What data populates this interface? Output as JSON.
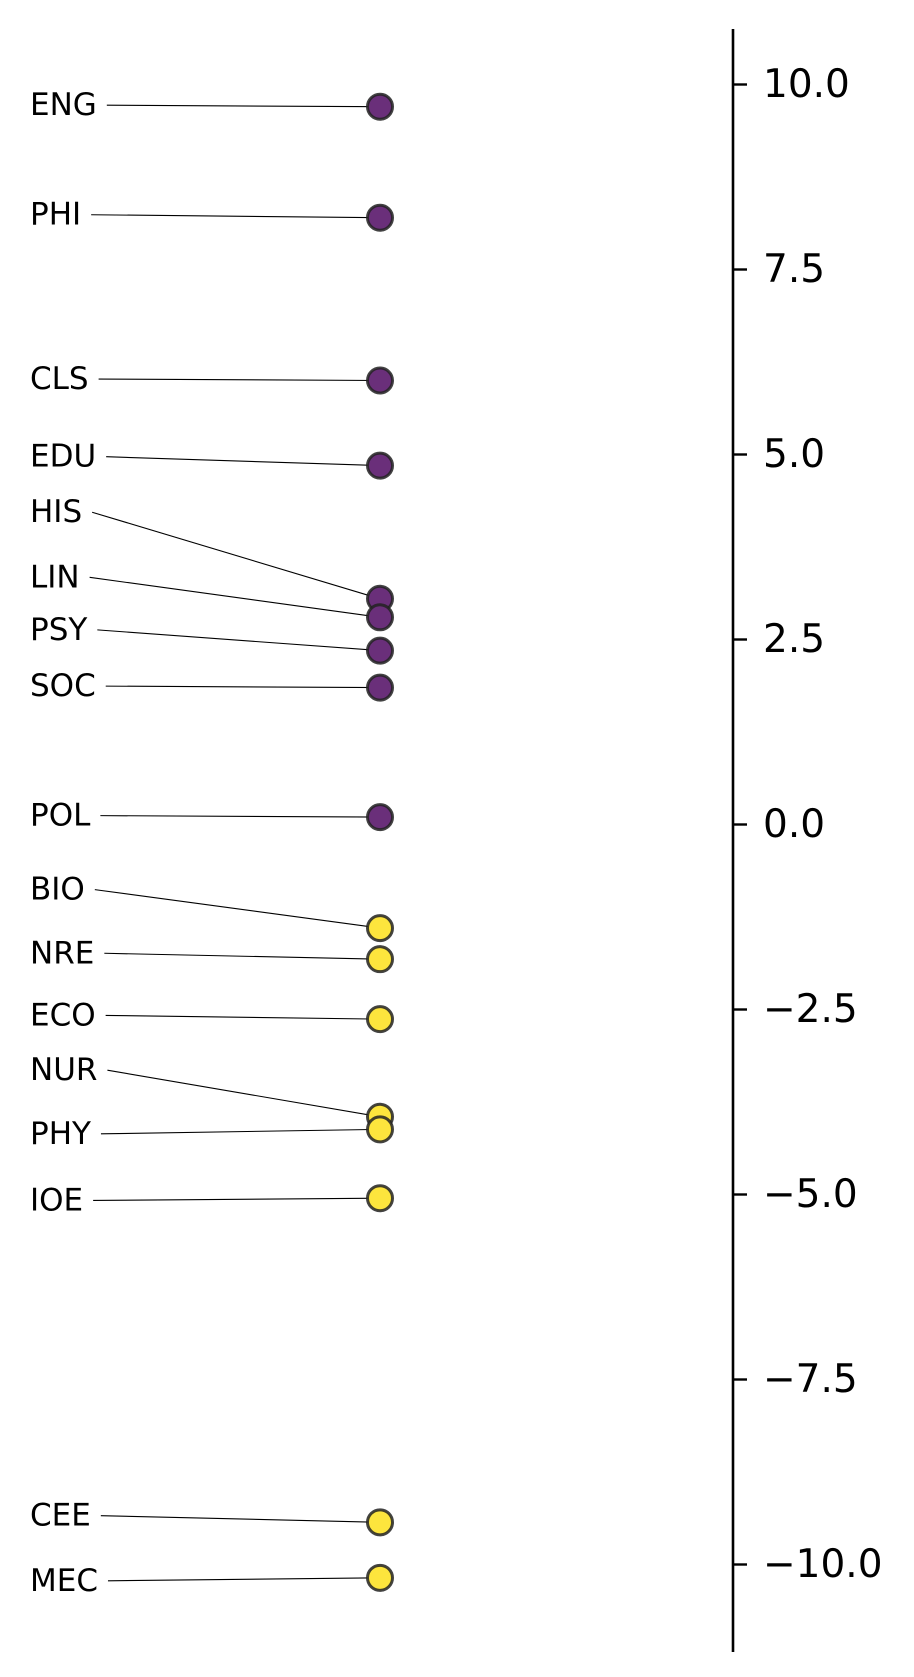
{
  "chart_data": {
    "type": "scatter",
    "title": "",
    "xlabel": "",
    "ylabel": "",
    "ylim": [
      -11.0,
      10.7
    ],
    "yticks": [
      10.0,
      7.5,
      5.0,
      2.5,
      0.0,
      -2.5,
      -5.0,
      -7.5,
      -10.0
    ],
    "ytick_labels": [
      "10.0",
      "7.5",
      "5.0",
      "2.5",
      "0.0",
      "−2.5",
      "−5.0",
      "−7.5",
      "−10.0"
    ],
    "colors": {
      "positive": "#6a2f7a",
      "negative": "#fde53d"
    },
    "points": [
      {
        "label": "ENG",
        "value": 9.7,
        "label_pos": 9.72
      },
      {
        "label": "PHI",
        "value": 8.2,
        "label_pos": 8.24
      },
      {
        "label": "CLS",
        "value": 6.0,
        "label_pos": 6.02
      },
      {
        "label": "EDU",
        "value": 4.85,
        "label_pos": 4.97
      },
      {
        "label": "HIS",
        "value": 3.05,
        "label_pos": 4.22
      },
      {
        "label": "LIN",
        "value": 2.8,
        "label_pos": 3.34
      },
      {
        "label": "PSY",
        "value": 2.35,
        "label_pos": 2.63
      },
      {
        "label": "SOC",
        "value": 1.85,
        "label_pos": 1.87
      },
      {
        "label": "POL",
        "value": 0.1,
        "label_pos": 0.12
      },
      {
        "label": "BIO",
        "value": -1.4,
        "label_pos": -0.88
      },
      {
        "label": "NRE",
        "value": -1.82,
        "label_pos": -1.74
      },
      {
        "label": "ECO",
        "value": -2.63,
        "label_pos": -2.58
      },
      {
        "label": "NUR",
        "value": -3.95,
        "label_pos": -3.32
      },
      {
        "label": "PHY",
        "value": -4.12,
        "label_pos": -4.18
      },
      {
        "label": "IOE",
        "value": -5.05,
        "label_pos": -5.08
      },
      {
        "label": "CEE",
        "value": -9.43,
        "label_pos": -9.34
      },
      {
        "label": "MEC",
        "value": -10.18,
        "label_pos": -10.22
      }
    ]
  }
}
